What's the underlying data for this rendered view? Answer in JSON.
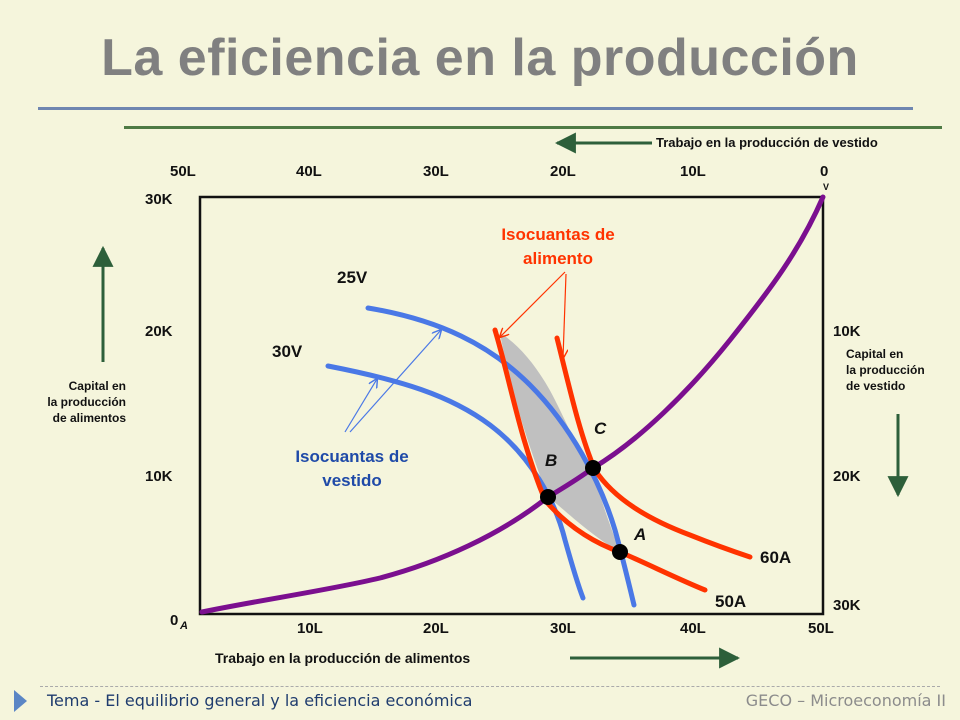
{
  "slide": {
    "title": "La eficiencia en la producción"
  },
  "axes": {
    "top_axis_label": "Trabajo en la producción  de vestido",
    "bottom_axis_label": "Trabajo en la producción de alimentos",
    "left_axis_label_lines": [
      "Capital en",
      "la producción",
      "de alimentos"
    ],
    "right_axis_label_lines": [
      "Capital en",
      "la producción",
      "de vestido"
    ],
    "top_ticks": [
      "50L",
      "40L",
      "30L",
      "20L",
      "10L",
      "0"
    ],
    "top_origin_sub": "V",
    "bottom_ticks": [
      "10L",
      "20L",
      "30L",
      "40L",
      "50L"
    ],
    "bottom_origin": "0",
    "bottom_origin_sub": "A",
    "left_ticks": [
      "30K",
      "20K",
      "10K"
    ],
    "right_ticks": [
      "10K",
      "20K",
      "30K"
    ]
  },
  "curves": {
    "food_isoquants_title_lines": [
      "Isocuantas de",
      "alimento"
    ],
    "clothing_isoquants_title_lines": [
      "Isocuantas de",
      "vestido"
    ],
    "clothing_labels": [
      "25V",
      "30V"
    ],
    "food_labels": [
      "60A",
      "50A"
    ]
  },
  "points": {
    "A": "A",
    "B": "B",
    "C": "C"
  },
  "colors": {
    "background": "#f5f5dc",
    "contract_curve": "#7b0f8f",
    "food_isoquant": "#ff3300",
    "clothing_isoquant": "#4a78e6",
    "food_title": "#ff3300",
    "clothing_title": "#1f4aa8",
    "arrow": "#2d5f3a",
    "lens_fill": "#c0c0c0"
  },
  "footer": {
    "left": "Tema  - El equilibrio general y la eficiencia económica",
    "right": "GECO – Microeconomía II"
  }
}
